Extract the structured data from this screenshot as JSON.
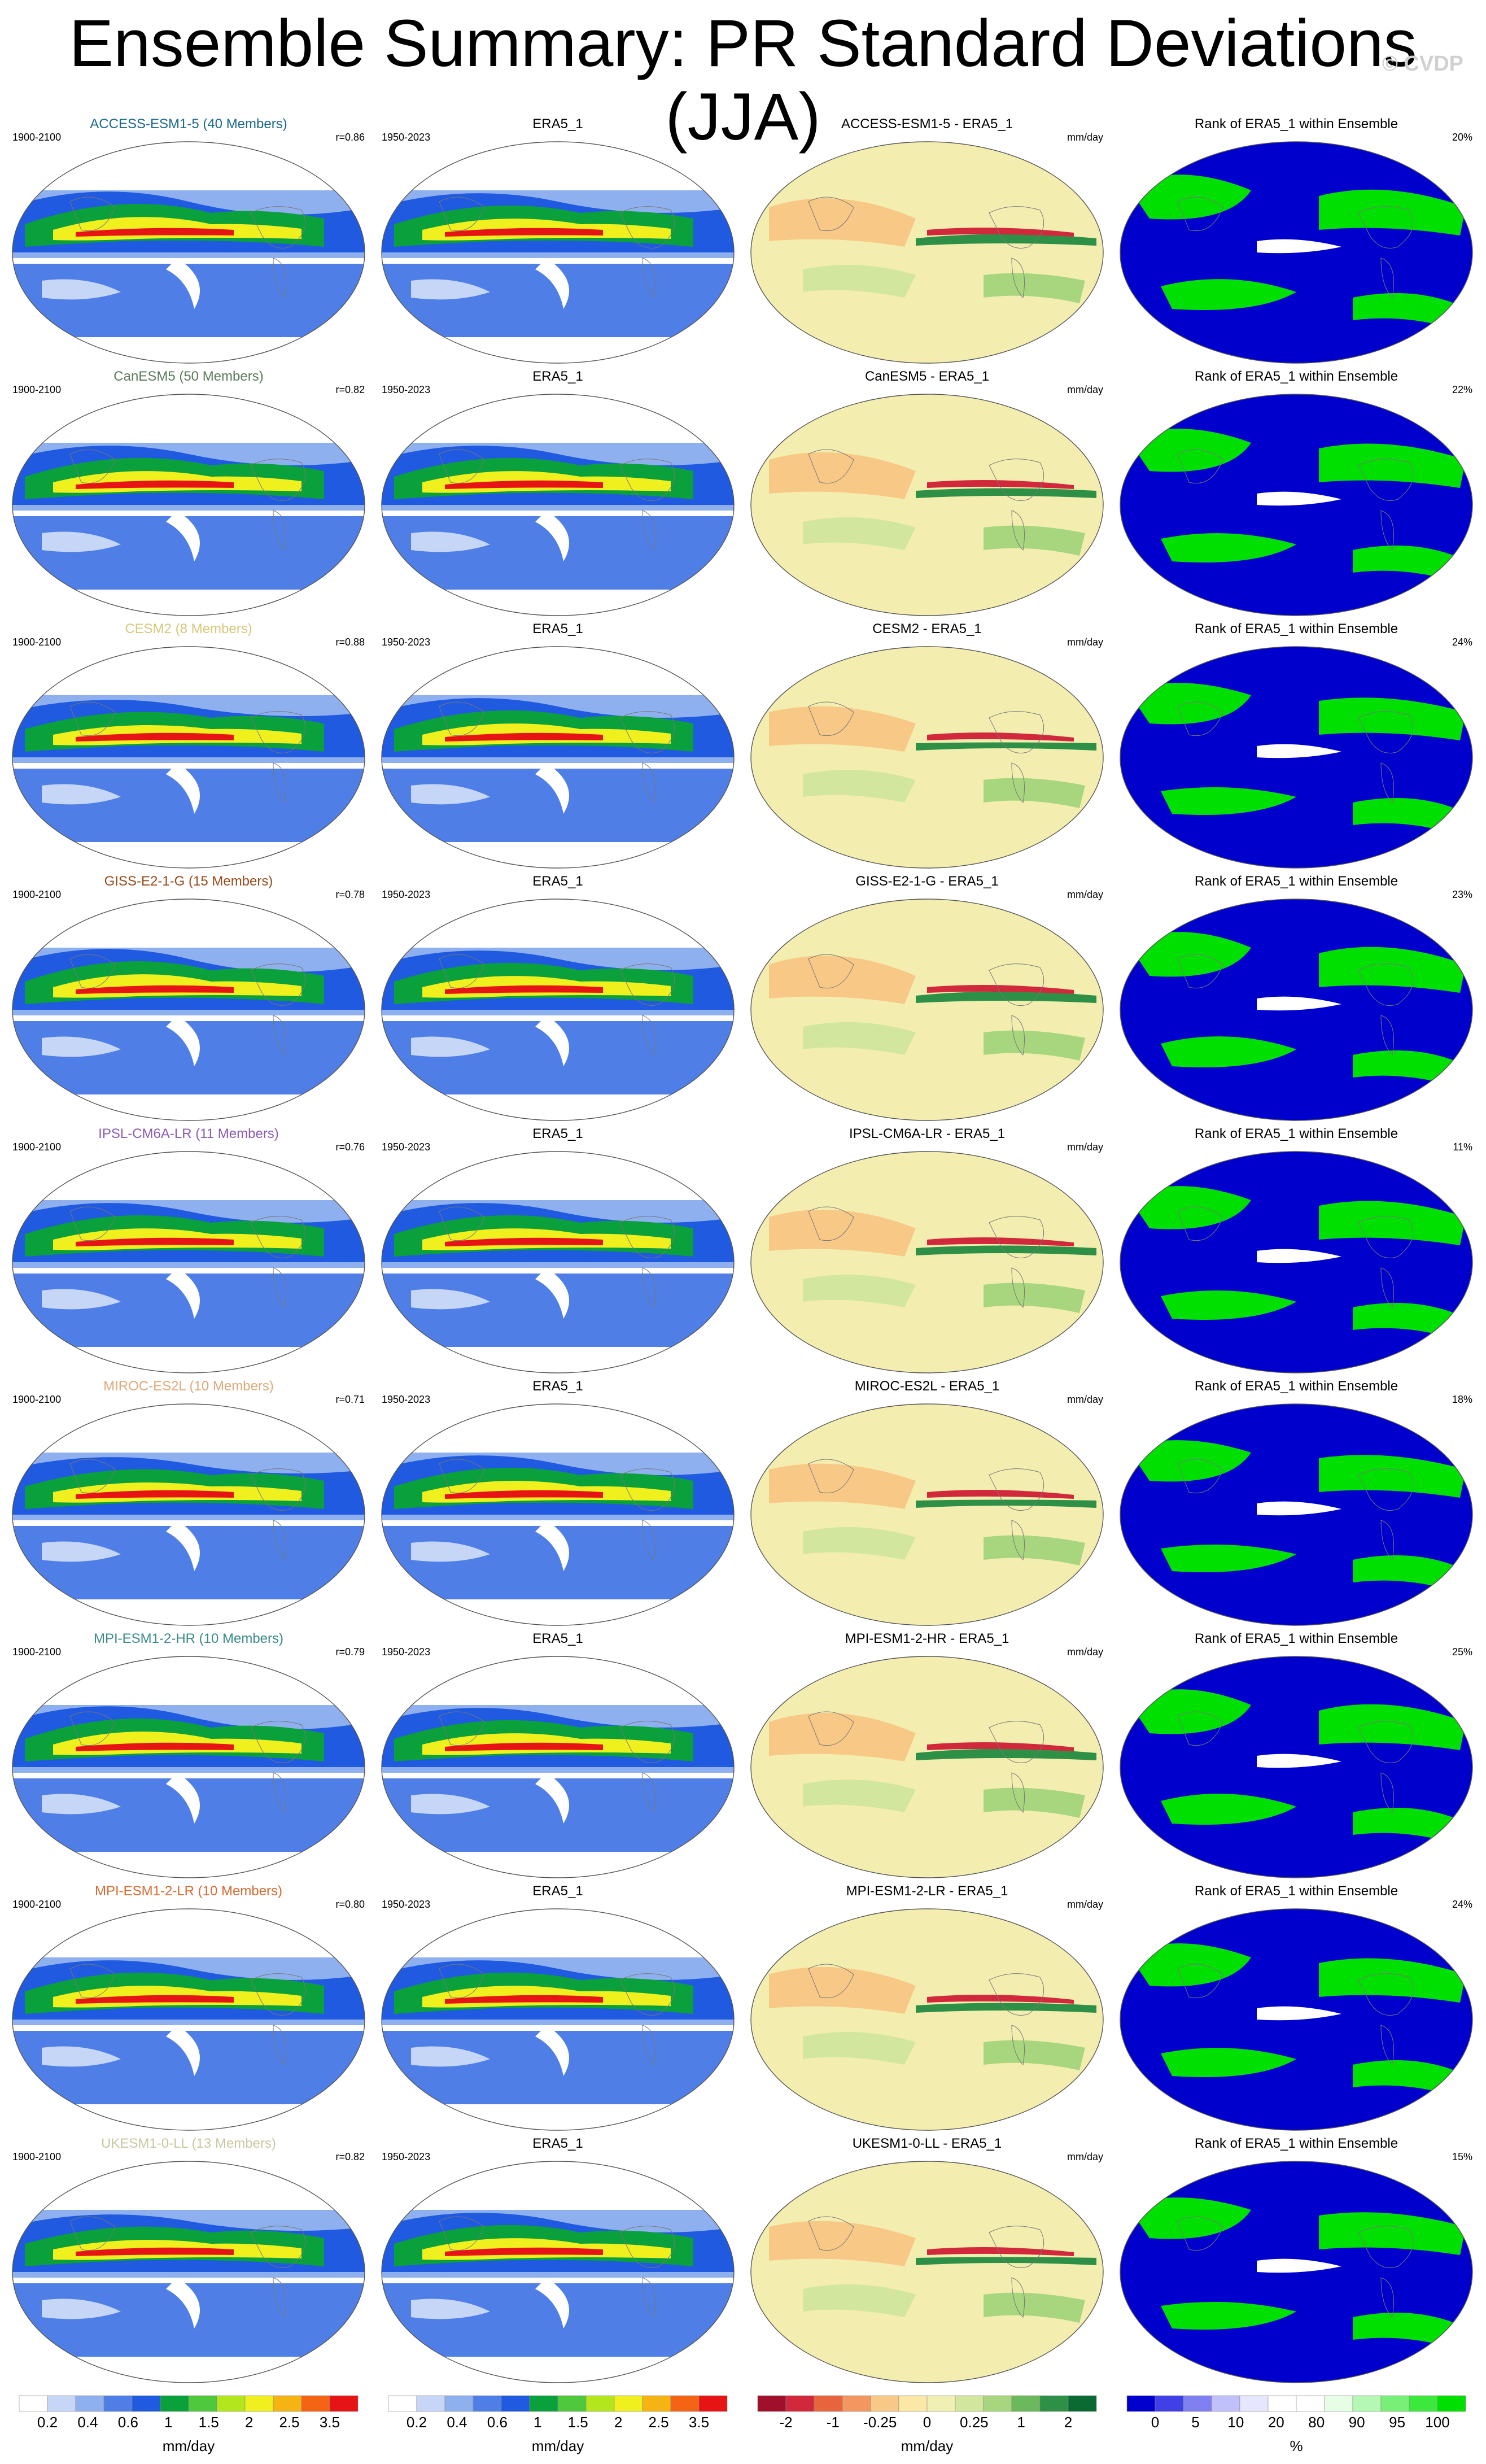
{
  "title": "Ensemble Summary: PR Standard Deviations (JJA)",
  "watermark": "© CVDP",
  "obs_name": "ERA5_1",
  "obs_period": "1950-2023",
  "model_period": "1900-2100",
  "diff_units": "mm/day",
  "rank_title": "Rank of ERA5_1 within Ensemble",
  "rows": [
    {
      "model_title": "ACCESS-ESM1-5 (40 Members)",
      "model_color": "#1b6a8c",
      "r": "r=0.86",
      "diff_title": "ACCESS-ESM1-5 - ERA5_1",
      "rank_pct": "20%"
    },
    {
      "model_title": "CanESM5 (50 Members)",
      "model_color": "#5a7a5a",
      "r": "r=0.82",
      "diff_title": "CanESM5 - ERA5_1",
      "rank_pct": "22%"
    },
    {
      "model_title": "CESM2 (8 Members)",
      "model_color": "#d8c77a",
      "r": "r=0.88",
      "diff_title": "CESM2 - ERA5_1",
      "rank_pct": "24%"
    },
    {
      "model_title": "GISS-E2-1-G (15 Members)",
      "model_color": "#9a4a1a",
      "r": "r=0.78",
      "diff_title": "GISS-E2-1-G - ERA5_1",
      "rank_pct": "23%"
    },
    {
      "model_title": "IPSL-CM6A-LR (11 Members)",
      "model_color": "#8a5ab8",
      "r": "r=0.76",
      "diff_title": "IPSL-CM6A-LR - ERA5_1",
      "rank_pct": "11%"
    },
    {
      "model_title": "MIROC-ES2L (10 Members)",
      "model_color": "#e0a878",
      "r": "r=0.71",
      "diff_title": "MIROC-ES2L - ERA5_1",
      "rank_pct": "18%"
    },
    {
      "model_title": "MPI-ESM1-2-HR (10 Members)",
      "model_color": "#3a8a8a",
      "r": "r=0.79",
      "diff_title": "MPI-ESM1-2-HR - ERA5_1",
      "rank_pct": "25%"
    },
    {
      "model_title": "MPI-ESM1-2-LR (10 Members)",
      "model_color": "#d86a30",
      "r": "r=0.80",
      "diff_title": "MPI-ESM1-2-LR - ERA5_1",
      "rank_pct": "24%"
    },
    {
      "model_title": "UKESM1-0-LL (13 Members)",
      "model_color": "#c8c8a0",
      "r": "r=0.82",
      "diff_title": "UKESM1-0-LL - ERA5_1",
      "rank_pct": "15%"
    }
  ],
  "colorbars": [
    {
      "labels": [
        "0.2",
        "0.4",
        "0.6",
        "1",
        "1.5",
        "2",
        "2.5",
        "3.5"
      ],
      "unit": "mm/day",
      "colors": [
        "#ffffff",
        "#c6d6f7",
        "#8fb0ef",
        "#4f7fe6",
        "#1f5ae0",
        "#0aa03c",
        "#50c83c",
        "#b4e61e",
        "#f0f01e",
        "#f5b414",
        "#f56414",
        "#e61414"
      ]
    },
    {
      "labels": [
        "0.2",
        "0.4",
        "0.6",
        "1",
        "1.5",
        "2",
        "2.5",
        "3.5"
      ],
      "unit": "mm/day",
      "colors": [
        "#ffffff",
        "#c6d6f7",
        "#8fb0ef",
        "#4f7fe6",
        "#1f5ae0",
        "#0aa03c",
        "#50c83c",
        "#b4e61e",
        "#f0f01e",
        "#f5b414",
        "#f56414",
        "#e61414"
      ]
    },
    {
      "labels": [
        "-2",
        "-1",
        "-0.25",
        "0",
        "0.25",
        "1",
        "2"
      ],
      "unit": "mm/day",
      "colors": [
        "#a0102a",
        "#d2283c",
        "#e8643c",
        "#f39660",
        "#f8c887",
        "#fbe8a6",
        "#f0f0b4",
        "#d2e69e",
        "#a8d67e",
        "#6cb85c",
        "#2e9046",
        "#0a6a32"
      ]
    },
    {
      "labels": [
        "0",
        "5",
        "10",
        "20",
        "80",
        "90",
        "95",
        "100"
      ],
      "unit": "%",
      "colors": [
        "#0000cd",
        "#4040e6",
        "#8080f0",
        "#c0c0fa",
        "#e6e6fe",
        "#ffffff",
        "#ffffff",
        "#e6fee6",
        "#b4f8b4",
        "#78f078",
        "#3ce83c",
        "#00e000"
      ]
    }
  ]
}
